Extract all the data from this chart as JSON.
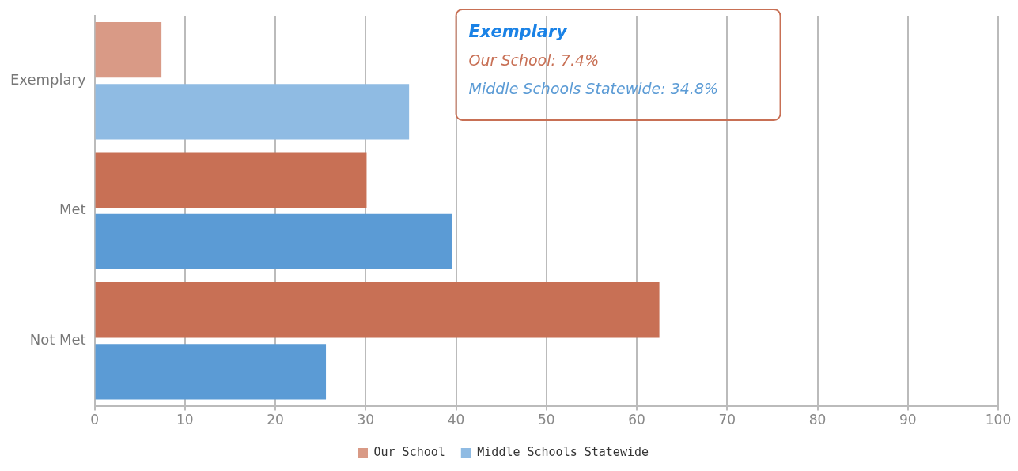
{
  "chart_data": {
    "type": "bar",
    "orientation": "horizontal",
    "categories": [
      "Exemplary",
      "Met",
      "Not Met"
    ],
    "series": [
      {
        "name": "Our School",
        "color": "#c87055",
        "colors": [
          "#d99a86",
          "#c87055",
          "#c87055"
        ],
        "values": [
          7.4,
          30.1,
          62.5
        ]
      },
      {
        "name": "Middle Schools Statewide",
        "color": "#5b9bd5",
        "colors": [
          "#8fbbe3",
          "#5b9bd5",
          "#5b9bd5"
        ],
        "values": [
          34.8,
          39.6,
          25.6
        ]
      }
    ],
    "xlim": [
      0,
      100
    ],
    "xticks": [
      0,
      10,
      20,
      30,
      40,
      50,
      60,
      70,
      80,
      90,
      100
    ],
    "grid": "x",
    "legend": "bottom",
    "annotations": [
      "Exemplary",
      "Our School: 7.4%",
      "Middle Schools Statewide: 34.8%"
    ]
  }
}
